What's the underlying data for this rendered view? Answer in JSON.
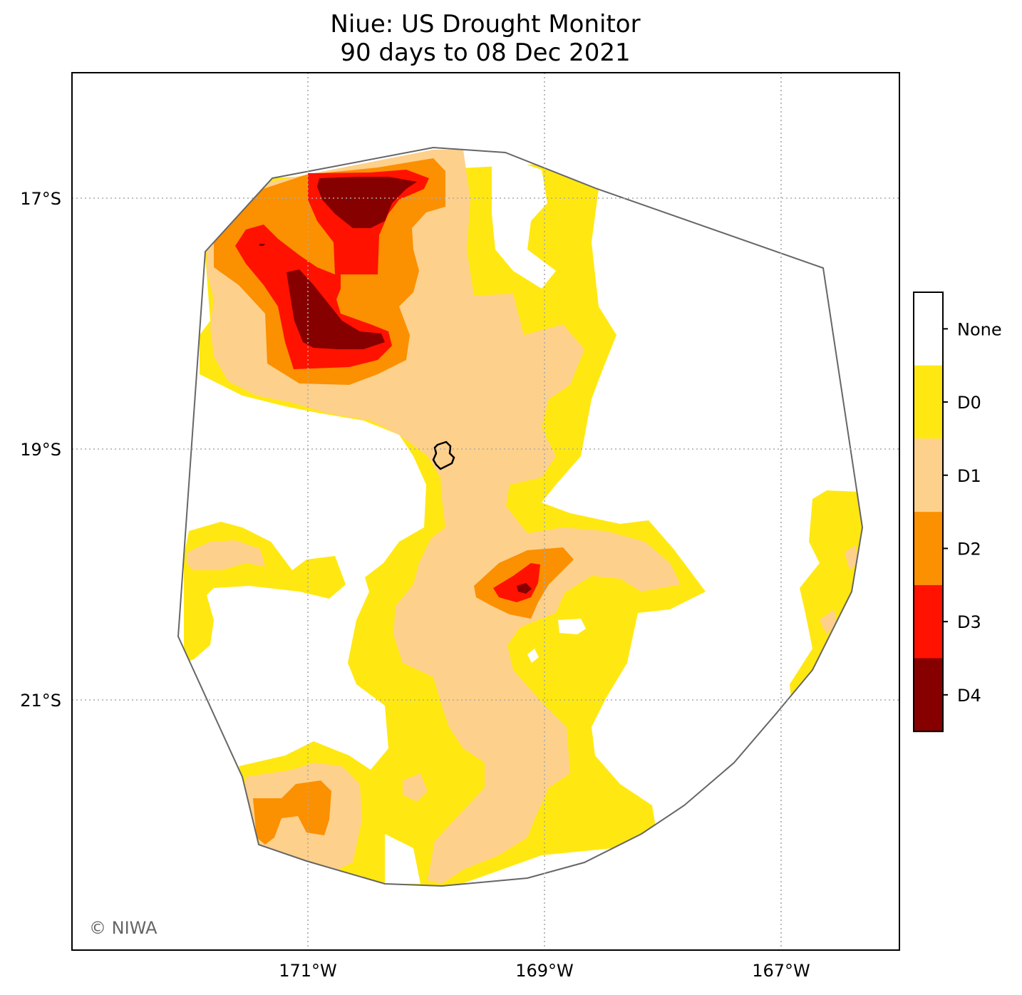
{
  "title": "Niue: US Drought Monitor",
  "subtitle": "90 days to 08 Dec 2021",
  "copyright": "© NIWA",
  "lat_ticks": [
    "17°S",
    "19°S",
    "21°S"
  ],
  "lon_ticks": [
    "171°W",
    "169°W",
    "167°W"
  ],
  "legend": [
    {
      "label": "None",
      "color": "#ffffff"
    },
    {
      "label": "D0",
      "color": "#ffe811"
    },
    {
      "label": "D1",
      "color": "#fdd08c"
    },
    {
      "label": "D2",
      "color": "#fb9000"
    },
    {
      "label": "D3",
      "color": "#ff1200"
    },
    {
      "label": "D4",
      "color": "#870000"
    }
  ]
}
